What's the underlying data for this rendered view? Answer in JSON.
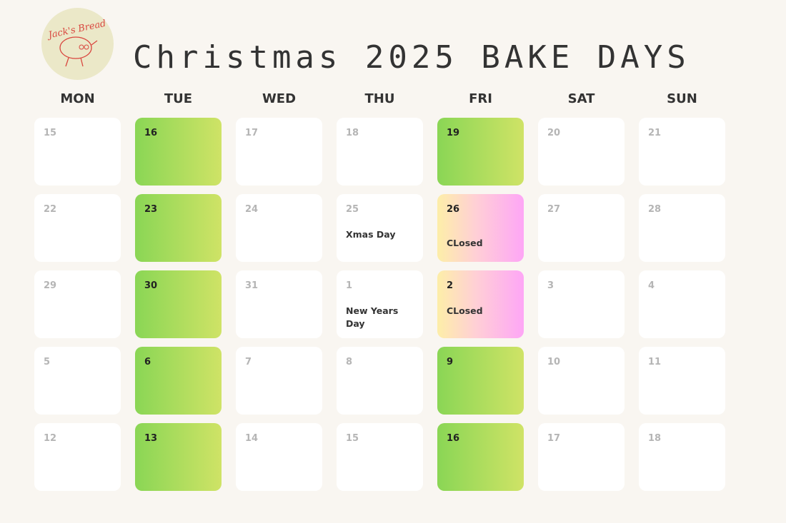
{
  "header": {
    "title": "Christmas 2025 BAKE DAYS",
    "logo_text": "Jack's Bread"
  },
  "weekdays": [
    "MON",
    "TUE",
    "WED",
    "THU",
    "FRI",
    "SAT",
    "SUN"
  ],
  "colors": {
    "bake": "#8ad655",
    "closed": "#fea6f6",
    "background": "#f9f6f1"
  },
  "weeks": [
    [
      {
        "day": "15"
      },
      {
        "day": "16",
        "type": "bake"
      },
      {
        "day": "17"
      },
      {
        "day": "18"
      },
      {
        "day": "19",
        "type": "bake"
      },
      {
        "day": "20"
      },
      {
        "day": "21"
      }
    ],
    [
      {
        "day": "22"
      },
      {
        "day": "23",
        "type": "bake"
      },
      {
        "day": "24"
      },
      {
        "day": "25",
        "note": "Xmas Day"
      },
      {
        "day": "26",
        "type": "closed",
        "note": "CLosed"
      },
      {
        "day": "27"
      },
      {
        "day": "28"
      }
    ],
    [
      {
        "day": "29"
      },
      {
        "day": "30",
        "type": "bake"
      },
      {
        "day": "31"
      },
      {
        "day": "1",
        "note": "New Years Day"
      },
      {
        "day": "2",
        "type": "closed",
        "note": "CLosed"
      },
      {
        "day": "3"
      },
      {
        "day": "4"
      }
    ],
    [
      {
        "day": "5"
      },
      {
        "day": "6",
        "type": "bake"
      },
      {
        "day": "7"
      },
      {
        "day": "8"
      },
      {
        "day": "9",
        "type": "bake"
      },
      {
        "day": "10"
      },
      {
        "day": "11"
      }
    ],
    [
      {
        "day": "12"
      },
      {
        "day": "13",
        "type": "bake"
      },
      {
        "day": "14"
      },
      {
        "day": "15"
      },
      {
        "day": "16",
        "type": "bake"
      },
      {
        "day": "17"
      },
      {
        "day": "18"
      }
    ]
  ]
}
